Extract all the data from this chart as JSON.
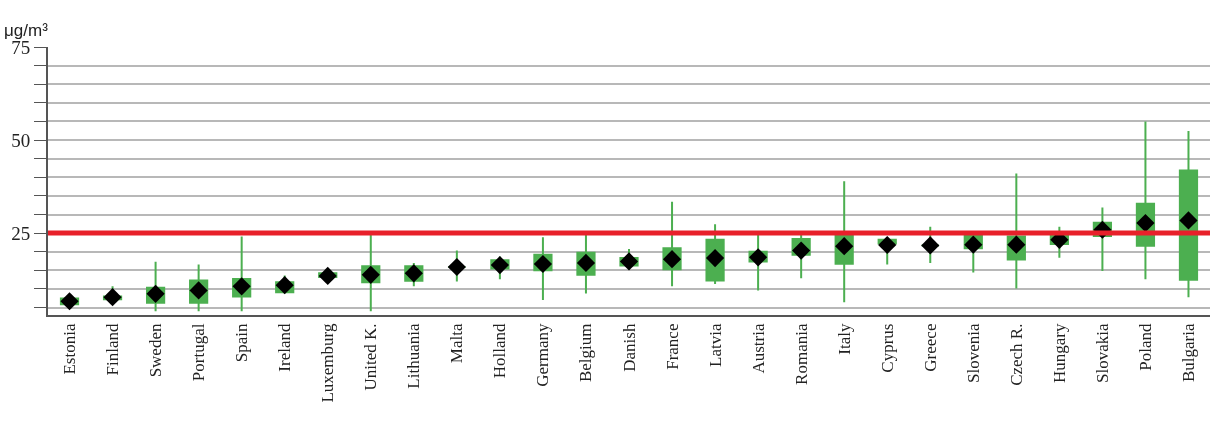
{
  "chart_data": {
    "type": "box",
    "ylabel": "μg/m³",
    "categories": [
      "Estonia",
      "Finland",
      "Sweden",
      "Portugal",
      "Spain",
      "Ireland",
      "Luxemburg",
      "United K.",
      "Lithuania",
      "Malta",
      "Holland",
      "Germany",
      "Belgium",
      "Danish",
      "France",
      "Latvia",
      "Austria",
      "Romania",
      "Italy",
      "Cyprus",
      "Greece",
      "Slovenia",
      "Czech R.",
      "Hungary",
      "Slovakia",
      "Poland",
      "Bulgaria"
    ],
    "boxes": [
      {
        "low": 5.9,
        "q1": 5.9,
        "median": 6.7,
        "q3": 7.4,
        "high": 7.4,
        "mean": 6.7
      },
      {
        "low": 6.0,
        "q1": 7.2,
        "median": 7.8,
        "q3": 8.0,
        "high": 10.7,
        "mean": 7.8
      },
      {
        "low": 4,
        "q1": 6.3,
        "median": 8.7,
        "q3": 10.3,
        "high": 17.3,
        "mean": 8.7
      },
      {
        "low": 4,
        "q1": 6.3,
        "median": 9.6,
        "q3": 12.3,
        "high": 16.6,
        "mean": 9.6
      },
      {
        "low": 4,
        "q1": 8.0,
        "median": 10.7,
        "q3": 12.7,
        "high": 24.1,
        "mean": 10.7
      },
      {
        "low": 8.8,
        "q1": 9.1,
        "median": 11.0,
        "q3": 11.8,
        "high": 13.6,
        "mean": 11.0
      },
      {
        "low": 11.6,
        "q1": 13.2,
        "median": 13.5,
        "q3": 14.2,
        "high": 14.8,
        "mean": 13.5
      },
      {
        "low": 4,
        "q1": 11.8,
        "median": 13.8,
        "q3": 16.1,
        "high": 24.5,
        "mean": 13.8
      },
      {
        "low": 10.7,
        "q1": 12.2,
        "median": 14.2,
        "q3": 16.1,
        "high": 17.0,
        "mean": 14.2
      },
      {
        "low": 12.0,
        "q1": 15.9,
        "median": 15.9,
        "q3": 15.9,
        "high": 20.3,
        "mean": 15.9
      },
      {
        "low": 12.6,
        "q1": 15.5,
        "median": 16.4,
        "q3": 17.7,
        "high": 18.7,
        "mean": 16.4
      },
      {
        "low": 7.0,
        "q1": 15.0,
        "median": 16.7,
        "q3": 19.2,
        "high": 23.9,
        "mean": 16.7
      },
      {
        "low": 8.8,
        "q1": 13.8,
        "median": 17.0,
        "q3": 19.7,
        "high": 24.7,
        "mean": 17.0
      },
      {
        "low": 15.1,
        "q1": 16.3,
        "median": 17.4,
        "q3": 18.3,
        "high": 20.7,
        "mean": 17.4
      },
      {
        "low": 10.7,
        "q1": 15.3,
        "median": 18.0,
        "q3": 20.9,
        "high": 33.4,
        "mean": 18.0
      },
      {
        "low": 11.3,
        "q1": 12.3,
        "median": 18.3,
        "q3": 23.2,
        "high": 27.4,
        "mean": 18.3
      },
      {
        "low": 9.6,
        "q1": 17.4,
        "median": 18.5,
        "q3": 20.0,
        "high": 24.5,
        "mean": 18.5
      },
      {
        "low": 12.9,
        "q1": 19.2,
        "median": 20.3,
        "q3": 23.4,
        "high": 24.5,
        "mean": 20.3
      },
      {
        "low": 6.4,
        "q1": 16.8,
        "median": 21.5,
        "q3": 24.5,
        "high": 38.9,
        "mean": 21.5
      },
      {
        "low": 16.6,
        "q1": 22.2,
        "median": 22.6,
        "q3": 23.2,
        "high": 23.8,
        "mean": 21.8
      },
      {
        "low": 17.0,
        "q1": 21.7,
        "median": 21.7,
        "q3": 21.7,
        "high": 26.7,
        "mean": 21.7
      },
      {
        "low": 14.4,
        "q1": 20.9,
        "median": 21.9,
        "q3": 24.7,
        "high": 24.7,
        "mean": 21.9
      },
      {
        "low": 10.1,
        "q1": 17.9,
        "median": 21.9,
        "q3": 24.1,
        "high": 41.0,
        "mean": 21.9
      },
      {
        "low": 18.4,
        "q1": 22.1,
        "median": 23.2,
        "q3": 24.5,
        "high": 26.7,
        "mean": 23.2
      },
      {
        "low": 14.8,
        "q1": 24.2,
        "median": 25.9,
        "q3": 27.8,
        "high": 31.9,
        "mean": 25.9
      },
      {
        "low": 12.6,
        "q1": 21.6,
        "median": 27.7,
        "q3": 32.9,
        "high": 55.0,
        "mean": 27.7
      },
      {
        "low": 7.8,
        "q1": 12.5,
        "median": 28.4,
        "q3": 41.8,
        "high": 52.4,
        "mean": 28.4
      }
    ],
    "color": "#4caf50",
    "ylim": [
      3,
      75
    ],
    "yticks": [
      {
        "value": 5,
        "label": null
      },
      {
        "value": 10,
        "label": null
      },
      {
        "value": 15,
        "label": null
      },
      {
        "value": 20,
        "label": null
      },
      25,
      {
        "value": 30,
        "label": null
      },
      {
        "value": 35,
        "label": null
      },
      {
        "value": 40,
        "label": null
      },
      {
        "value": 45,
        "label": null
      },
      50,
      {
        "value": 55,
        "label": null
      },
      {
        "value": 60,
        "label": null
      },
      {
        "value": 65,
        "label": null
      },
      {
        "value": 70,
        "label": null
      },
      75
    ],
    "ref_lines": [
      {
        "axis": "y",
        "value": 25,
        "color": "#e8202a"
      }
    ],
    "marker": "diamond",
    "grid": "y"
  }
}
